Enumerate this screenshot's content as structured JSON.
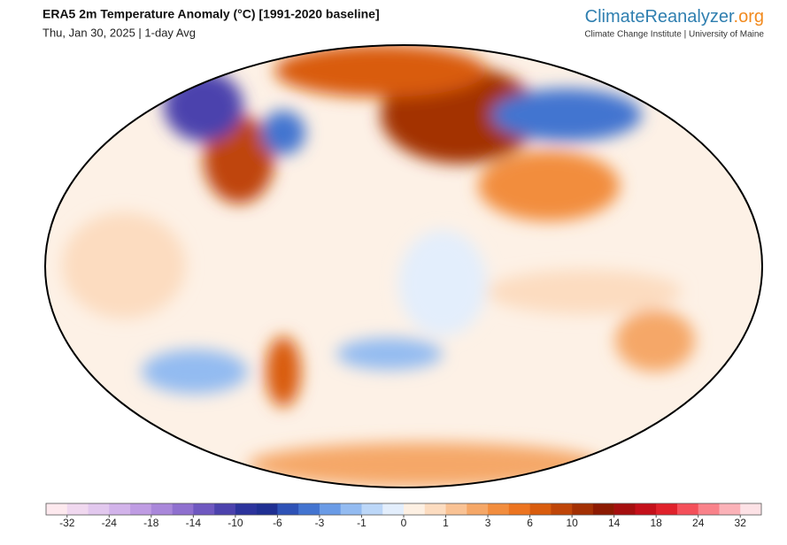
{
  "header": {
    "title": "ERA5 2m Temperature Anomaly (°C) [1991-2020 baseline]",
    "subtitle": "Thu, Jan 30, 2025 | 1-day Avg"
  },
  "logo": {
    "name": "ClimateReanalyzer",
    "suffix": ".org",
    "tagline": "Climate Change Institute | University of Maine"
  },
  "colorbar": {
    "ticks": [
      -32,
      -24,
      -18,
      -14,
      -10,
      -6,
      -3,
      -1,
      0,
      1,
      3,
      6,
      10,
      14,
      18,
      24,
      32
    ],
    "colors": [
      "#fde9ee",
      "#f0d8ef",
      "#e2c8ee",
      "#d2b3ea",
      "#bf9ce3",
      "#a987da",
      "#8f70cf",
      "#6f58c0",
      "#4c42ad",
      "#2c339c",
      "#1f2f92",
      "#2e52b6",
      "#4374d0",
      "#6a9be6",
      "#93bbf1",
      "#bcd7f8",
      "#e3eefc",
      "#fdf0e3",
      "#fcdcc0",
      "#f9c294",
      "#f5a767",
      "#f28d3e",
      "#ec7420",
      "#d95c0d",
      "#bf4508",
      "#a33004",
      "#8c1a02",
      "#a50f0f",
      "#c4101a",
      "#e0212b",
      "#f4505a",
      "#f9828a",
      "#fbb2b8",
      "#fde2e6"
    ]
  }
}
